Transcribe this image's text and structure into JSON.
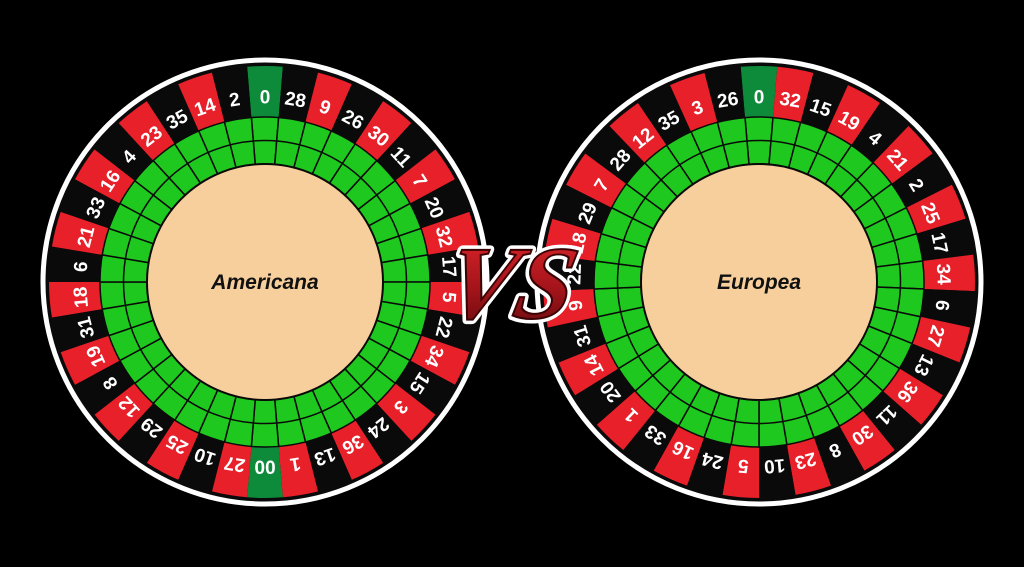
{
  "colors": {
    "background": "#000000",
    "red": "#e8202a",
    "black": "#0a0a0a",
    "green": "#0d8a3a",
    "track_green": "#1ec81e",
    "center": "#f7cf9c",
    "rim": "#ffffff",
    "vs_red": "#b3161b"
  },
  "vs_label": "VS",
  "wheels": [
    {
      "id": "american",
      "title": "Americana",
      "pockets": [
        {
          "n": "0",
          "c": "green"
        },
        {
          "n": "28",
          "c": "black"
        },
        {
          "n": "9",
          "c": "red"
        },
        {
          "n": "26",
          "c": "black"
        },
        {
          "n": "30",
          "c": "red"
        },
        {
          "n": "11",
          "c": "black"
        },
        {
          "n": "7",
          "c": "red"
        },
        {
          "n": "20",
          "c": "black"
        },
        {
          "n": "32",
          "c": "red"
        },
        {
          "n": "17",
          "c": "black"
        },
        {
          "n": "5",
          "c": "red"
        },
        {
          "n": "22",
          "c": "black"
        },
        {
          "n": "34",
          "c": "red"
        },
        {
          "n": "15",
          "c": "black"
        },
        {
          "n": "3",
          "c": "red"
        },
        {
          "n": "24",
          "c": "black"
        },
        {
          "n": "36",
          "c": "red"
        },
        {
          "n": "13",
          "c": "black"
        },
        {
          "n": "1",
          "c": "red"
        },
        {
          "n": "00",
          "c": "green"
        },
        {
          "n": "27",
          "c": "red"
        },
        {
          "n": "10",
          "c": "black"
        },
        {
          "n": "25",
          "c": "red"
        },
        {
          "n": "29",
          "c": "black"
        },
        {
          "n": "12",
          "c": "red"
        },
        {
          "n": "8",
          "c": "black"
        },
        {
          "n": "19",
          "c": "red"
        },
        {
          "n": "31",
          "c": "black"
        },
        {
          "n": "18",
          "c": "red"
        },
        {
          "n": "6",
          "c": "black"
        },
        {
          "n": "21",
          "c": "red"
        },
        {
          "n": "33",
          "c": "black"
        },
        {
          "n": "16",
          "c": "red"
        },
        {
          "n": "4",
          "c": "black"
        },
        {
          "n": "23",
          "c": "red"
        },
        {
          "n": "35",
          "c": "black"
        },
        {
          "n": "14",
          "c": "red"
        },
        {
          "n": "2",
          "c": "black"
        }
      ]
    },
    {
      "id": "european",
      "title": "Europea",
      "pockets": [
        {
          "n": "0",
          "c": "green"
        },
        {
          "n": "32",
          "c": "red"
        },
        {
          "n": "15",
          "c": "black"
        },
        {
          "n": "19",
          "c": "red"
        },
        {
          "n": "4",
          "c": "black"
        },
        {
          "n": "21",
          "c": "red"
        },
        {
          "n": "2",
          "c": "black"
        },
        {
          "n": "25",
          "c": "red"
        },
        {
          "n": "17",
          "c": "black"
        },
        {
          "n": "34",
          "c": "red"
        },
        {
          "n": "6",
          "c": "black"
        },
        {
          "n": "27",
          "c": "red"
        },
        {
          "n": "13",
          "c": "black"
        },
        {
          "n": "36",
          "c": "red"
        },
        {
          "n": "11",
          "c": "black"
        },
        {
          "n": "30",
          "c": "red"
        },
        {
          "n": "8",
          "c": "black"
        },
        {
          "n": "23",
          "c": "red"
        },
        {
          "n": "10",
          "c": "black"
        },
        {
          "n": "5",
          "c": "red"
        },
        {
          "n": "24",
          "c": "black"
        },
        {
          "n": "16",
          "c": "red"
        },
        {
          "n": "33",
          "c": "black"
        },
        {
          "n": "1",
          "c": "red"
        },
        {
          "n": "20",
          "c": "black"
        },
        {
          "n": "14",
          "c": "red"
        },
        {
          "n": "31",
          "c": "black"
        },
        {
          "n": "9",
          "c": "red"
        },
        {
          "n": "22",
          "c": "black"
        },
        {
          "n": "18",
          "c": "red"
        },
        {
          "n": "29",
          "c": "black"
        },
        {
          "n": "7",
          "c": "red"
        },
        {
          "n": "28",
          "c": "black"
        },
        {
          "n": "12",
          "c": "red"
        },
        {
          "n": "35",
          "c": "black"
        },
        {
          "n": "3",
          "c": "red"
        },
        {
          "n": "26",
          "c": "black"
        }
      ]
    }
  ]
}
